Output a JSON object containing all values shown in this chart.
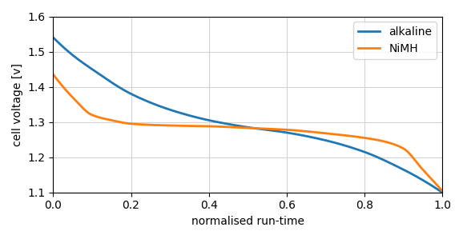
{
  "title": "",
  "xlabel": "normalised run-time",
  "ylabel": "cell voltage [v]",
  "xlim": [
    0.0,
    1.0
  ],
  "ylim": [
    1.1,
    1.6
  ],
  "yticks": [
    1.1,
    1.2,
    1.3,
    1.4,
    1.5,
    1.6
  ],
  "xticks": [
    0.0,
    0.2,
    0.4,
    0.6,
    0.8,
    1.0
  ],
  "alkaline_color": "#1f77b4",
  "nimh_color": "#ff7f0e",
  "legend_labels": [
    "alkaline",
    "NiMH"
  ],
  "grid": true,
  "linewidth": 2.0,
  "alk_knots": [
    [
      0.0,
      1.54
    ],
    [
      0.05,
      1.49
    ],
    [
      0.1,
      1.45
    ],
    [
      0.2,
      1.38
    ],
    [
      0.3,
      1.335
    ],
    [
      0.4,
      1.305
    ],
    [
      0.5,
      1.285
    ],
    [
      0.6,
      1.27
    ],
    [
      0.7,
      1.248
    ],
    [
      0.8,
      1.215
    ],
    [
      0.9,
      1.165
    ],
    [
      0.95,
      1.135
    ],
    [
      1.0,
      1.1
    ]
  ],
  "nimh_knots": [
    [
      0.0,
      1.435
    ],
    [
      0.05,
      1.37
    ],
    [
      0.1,
      1.32
    ],
    [
      0.15,
      1.305
    ],
    [
      0.2,
      1.295
    ],
    [
      0.3,
      1.29
    ],
    [
      0.4,
      1.288
    ],
    [
      0.5,
      1.283
    ],
    [
      0.6,
      1.278
    ],
    [
      0.7,
      1.268
    ],
    [
      0.8,
      1.255
    ],
    [
      0.85,
      1.245
    ],
    [
      0.9,
      1.225
    ],
    [
      0.95,
      1.165
    ],
    [
      1.0,
      1.105
    ]
  ]
}
